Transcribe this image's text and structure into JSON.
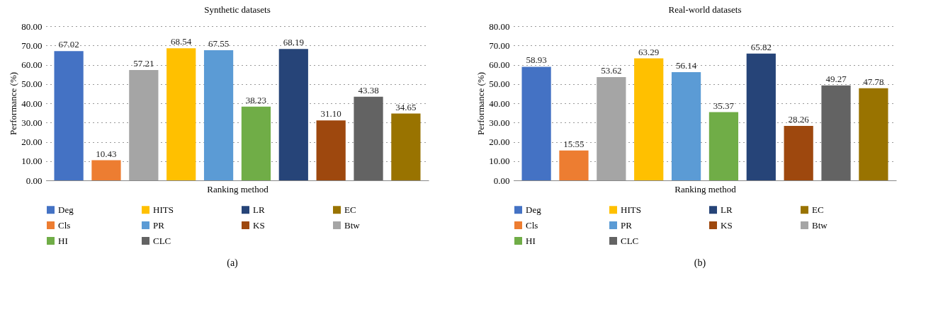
{
  "chart_data": [
    {
      "type": "bar",
      "title": "Synthetic datasets",
      "xlabel": "Ranking method",
      "ylabel": "Performance (%)",
      "categories": [
        null
      ],
      "series": [
        {
          "name": "Deg",
          "color": "#4472c4",
          "values": [
            67.02
          ],
          "value_labels": [
            "67.02"
          ]
        },
        {
          "name": "Cls",
          "color": "#ed7d31",
          "values": [
            10.43
          ],
          "value_labels": [
            "10.43"
          ]
        },
        {
          "name": "Btw",
          "color": "#a5a5a5",
          "values": [
            57.21
          ],
          "value_labels": [
            "57.21"
          ]
        },
        {
          "name": "HITS",
          "color": "#ffc000",
          "values": [
            68.54
          ],
          "value_labels": [
            "68.54"
          ]
        },
        {
          "name": "PR",
          "color": "#5b9bd5",
          "values": [
            67.55
          ],
          "value_labels": [
            "67.55"
          ]
        },
        {
          "name": "HI",
          "color": "#70ad47",
          "values": [
            38.23
          ],
          "value_labels": [
            "38.23"
          ]
        },
        {
          "name": "LR",
          "color": "#264478",
          "values": [
            68.19
          ],
          "value_labels": [
            "68.19"
          ]
        },
        {
          "name": "KS",
          "color": "#9e480e",
          "values": [
            31.1
          ],
          "value_labels": [
            "31.10"
          ]
        },
        {
          "name": "CLC",
          "color": "#636363",
          "values": [
            43.38
          ],
          "value_labels": [
            "43.38"
          ]
        },
        {
          "name": "EC",
          "color": "#997300",
          "values": [
            34.65
          ],
          "value_labels": [
            "34.65"
          ]
        }
      ],
      "ylim": [
        0,
        80
      ],
      "yticks": [
        {
          "value": 0,
          "label": "0.00"
        },
        {
          "value": 10,
          "label": "10.00"
        },
        {
          "value": 20,
          "label": "20.00"
        },
        {
          "value": 30,
          "label": "30.00"
        },
        {
          "value": 40,
          "label": "40.00"
        },
        {
          "value": 50,
          "label": "50.00"
        },
        {
          "value": 60,
          "label": "60.00"
        },
        {
          "value": 70,
          "label": "70.00"
        },
        {
          "value": 80,
          "label": "80.00"
        }
      ],
      "grid": "y",
      "legend": "bottom",
      "annotations": [
        "(a)"
      ]
    },
    {
      "type": "bar",
      "title": "Real-world datasets",
      "xlabel": "Ranking method",
      "ylabel": "Performance (%)",
      "categories": [
        null
      ],
      "series": [
        {
          "name": "Deg",
          "color": "#4472c4",
          "values": [
            58.93
          ],
          "value_labels": [
            "58.93"
          ]
        },
        {
          "name": "Cls",
          "color": "#ed7d31",
          "values": [
            15.55
          ],
          "value_labels": [
            "15.55"
          ]
        },
        {
          "name": "Btw",
          "color": "#a5a5a5",
          "values": [
            53.62
          ],
          "value_labels": [
            "53.62"
          ]
        },
        {
          "name": "HITS",
          "color": "#ffc000",
          "values": [
            63.29
          ],
          "value_labels": [
            "63.29"
          ]
        },
        {
          "name": "PR",
          "color": "#5b9bd5",
          "values": [
            56.14
          ],
          "value_labels": [
            "56.14"
          ]
        },
        {
          "name": "HI",
          "color": "#70ad47",
          "values": [
            35.37
          ],
          "value_labels": [
            "35.37"
          ]
        },
        {
          "name": "LR",
          "color": "#264478",
          "values": [
            65.82
          ],
          "value_labels": [
            "65.82"
          ]
        },
        {
          "name": "KS",
          "color": "#9e480e",
          "values": [
            28.26
          ],
          "value_labels": [
            "28.26"
          ]
        },
        {
          "name": "CLC",
          "color": "#636363",
          "values": [
            49.27
          ],
          "value_labels": [
            "49.27"
          ]
        },
        {
          "name": "EC",
          "color": "#997300",
          "values": [
            47.78
          ],
          "value_labels": [
            "47.78"
          ]
        }
      ],
      "ylim": [
        0,
        80
      ],
      "yticks": [
        {
          "value": 0,
          "label": "0.00"
        },
        {
          "value": 10,
          "label": "10.00"
        },
        {
          "value": 20,
          "label": "20.00"
        },
        {
          "value": 30,
          "label": "30.00"
        },
        {
          "value": 40,
          "label": "40.00"
        },
        {
          "value": 50,
          "label": "50.00"
        },
        {
          "value": 60,
          "label": "60.00"
        },
        {
          "value": 70,
          "label": "70.00"
        },
        {
          "value": 80,
          "label": "80.00"
        }
      ],
      "grid": "y",
      "legend": "bottom",
      "annotations": [
        "(b)"
      ]
    }
  ]
}
